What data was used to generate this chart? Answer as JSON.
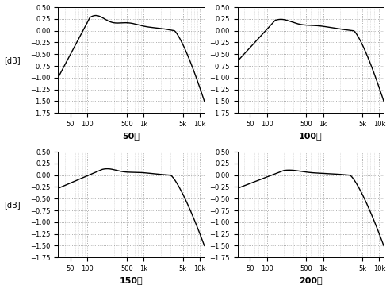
{
  "titles": [
    "50回",
    "100回",
    "150回",
    "200回"
  ],
  "ylabel": "[dB]",
  "ylim": [
    -1.75,
    0.5
  ],
  "yticks": [
    -1.75,
    -1.5,
    -1.25,
    -1.0,
    -0.75,
    -0.5,
    -0.25,
    0.0,
    0.25,
    0.5
  ],
  "xlim": [
    30,
    12000
  ],
  "xtick_positions": [
    50,
    100,
    500,
    1000,
    5000,
    10000
  ],
  "xtick_labels": [
    "50",
    "100",
    "500",
    "1k",
    "5k",
    "10k"
  ],
  "background_color": "#ffffff",
  "line_color": "#000000",
  "grid_color": "#888888",
  "curve_params": [
    {
      "start_val": -1.0,
      "rise_end": 110,
      "peak_val": 0.28,
      "flat_end": 3500,
      "flat_val": 0.0,
      "end_val": -1.5,
      "ripple_amp": 0.09,
      "ripple_freq": 5
    },
    {
      "start_val": -0.65,
      "rise_end": 140,
      "peak_val": 0.22,
      "flat_end": 3500,
      "flat_val": 0.0,
      "end_val": -1.5,
      "ripple_amp": 0.06,
      "ripple_freq": 4
    },
    {
      "start_val": -0.28,
      "rise_end": 180,
      "peak_val": 0.12,
      "flat_end": 3000,
      "flat_val": 0.0,
      "end_val": -1.5,
      "ripple_amp": 0.04,
      "ripple_freq": 4
    },
    {
      "start_val": -0.28,
      "rise_end": 200,
      "peak_val": 0.1,
      "flat_end": 3000,
      "flat_val": 0.0,
      "end_val": -1.5,
      "ripple_amp": 0.03,
      "ripple_freq": 3
    }
  ]
}
